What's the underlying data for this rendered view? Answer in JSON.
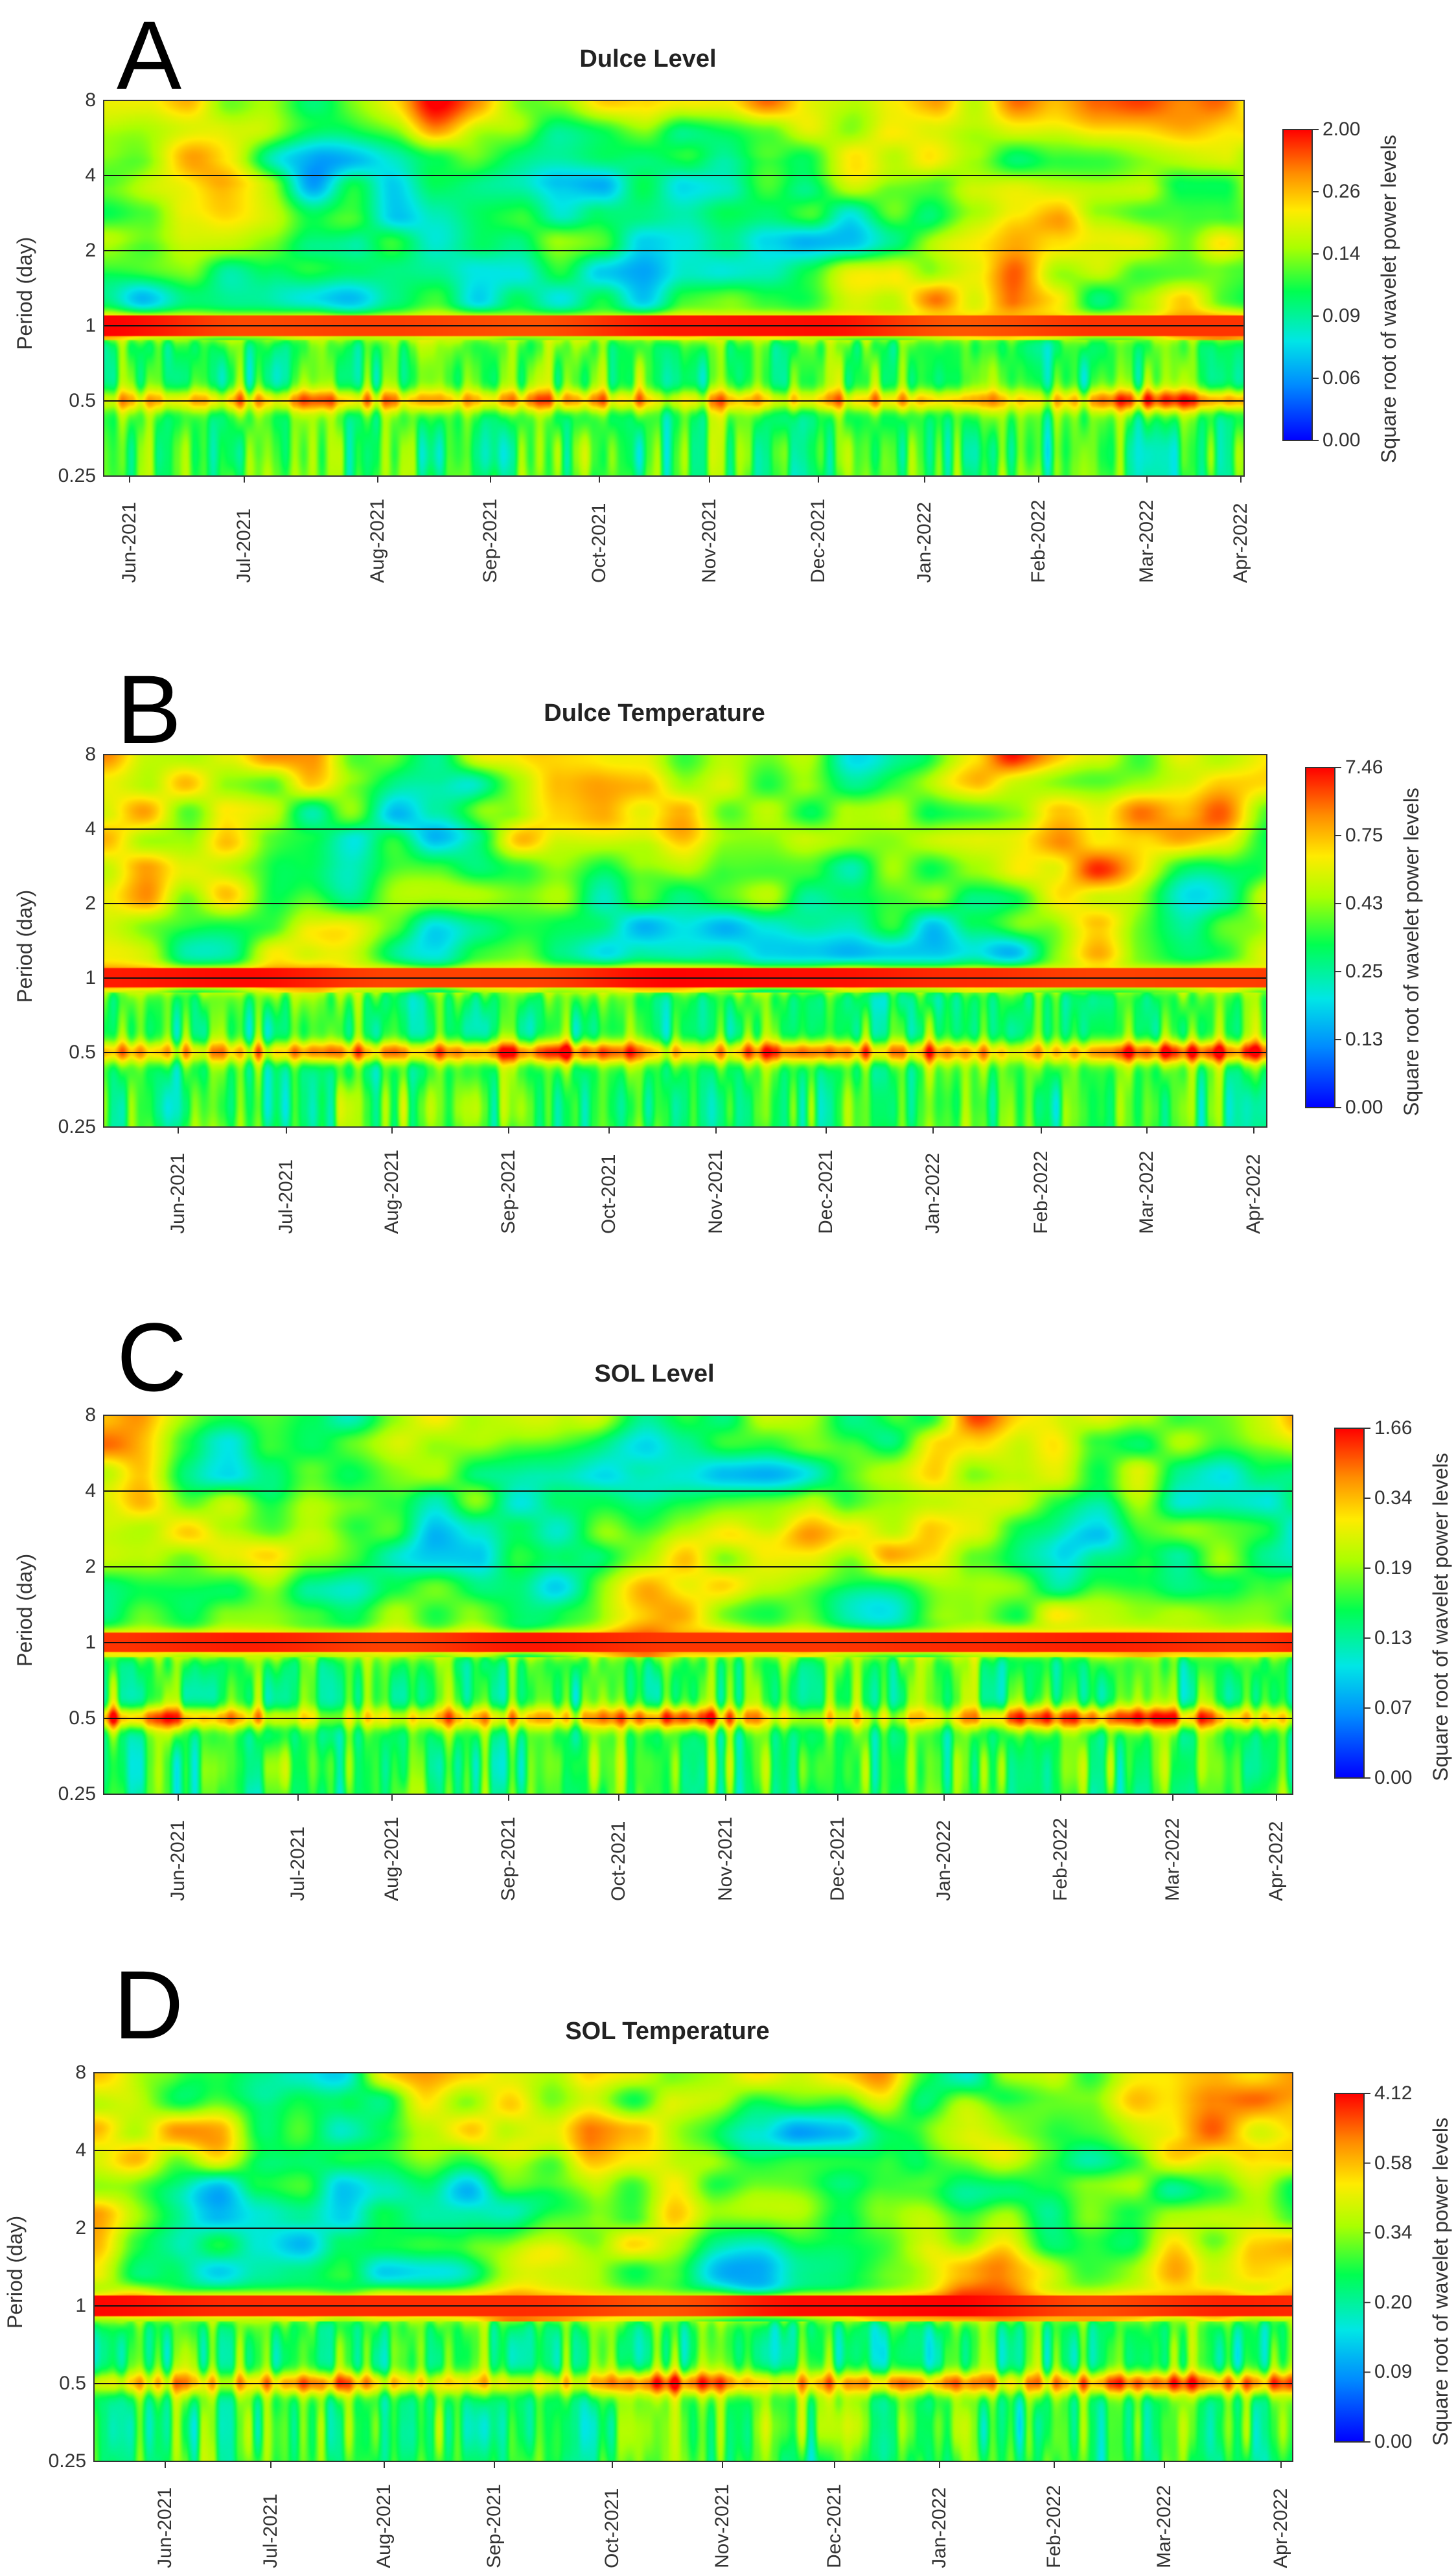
{
  "chart_data": [
    {
      "panel": "A",
      "type": "heatmap",
      "title": "Dulce Level",
      "ylabel": "Period (day)",
      "colorbar_label": "Square root of wavelet power levels",
      "y_scale": "log2",
      "y_ticks": [
        "8",
        "4",
        "2",
        "1",
        "0.5",
        "0.25"
      ],
      "x_ticks": [
        "Jun-2021",
        "Jul-2021",
        "Aug-2021",
        "Sep-2021",
        "Oct-2021",
        "Nov-2021",
        "Dec-2021",
        "Jan-2022",
        "Feb-2022",
        "Mar-2022",
        "Apr-2022"
      ],
      "colorbar_ticks": [
        "2.00",
        "0.26",
        "0.14",
        "0.09",
        "0.06",
        "0.00"
      ],
      "dominant_period_days": 1,
      "colors": [
        "#0000ff",
        "#00bfff",
        "#00ff66",
        "#ffff00",
        "#ff8800",
        "#ff0000"
      ]
    },
    {
      "panel": "B",
      "type": "heatmap",
      "title": "Dulce Temperature",
      "ylabel": "Period (day)",
      "colorbar_label": "Square root of wavelet power levels",
      "y_scale": "log2",
      "y_ticks": [
        "8",
        "4",
        "2",
        "1",
        "0.5",
        "0.25"
      ],
      "x_ticks": [
        "Jun-2021",
        "Jul-2021",
        "Aug-2021",
        "Sep-2021",
        "Oct-2021",
        "Nov-2021",
        "Dec-2021",
        "Jan-2022",
        "Feb-2022",
        "Mar-2022",
        "Apr-2022"
      ],
      "colorbar_ticks": [
        "7.46",
        "0.75",
        "0.43",
        "0.25",
        "0.13",
        "0.00"
      ],
      "dominant_period_days": 1,
      "colors": [
        "#0000ff",
        "#00bfff",
        "#00ff66",
        "#ffff00",
        "#ff8800",
        "#ff0000"
      ]
    },
    {
      "panel": "C",
      "type": "heatmap",
      "title": "SOL Level",
      "ylabel": "Period (day)",
      "colorbar_label": "Square root of wavelet power levels",
      "y_scale": "log2",
      "y_ticks": [
        "8",
        "4",
        "2",
        "1",
        "0.5",
        "0.25"
      ],
      "x_ticks": [
        "Jun-2021",
        "Jul-2021",
        "Aug-2021",
        "Sep-2021",
        "Oct-2021",
        "Nov-2021",
        "Dec-2021",
        "Jan-2022",
        "Feb-2022",
        "Mar-2022",
        "Apr-2022"
      ],
      "colorbar_ticks": [
        "1.66",
        "0.34",
        "0.19",
        "0.13",
        "0.07",
        "0.00"
      ],
      "dominant_period_days": 1,
      "colors": [
        "#0000ff",
        "#00bfff",
        "#00ff66",
        "#ffff00",
        "#ff8800",
        "#ff0000"
      ]
    },
    {
      "panel": "D",
      "type": "heatmap",
      "title": "SOL Temperature",
      "ylabel": "Period (day)",
      "colorbar_label": "Square root of wavelet power levels",
      "y_scale": "log2",
      "y_ticks": [
        "8",
        "4",
        "2",
        "1",
        "0.5",
        "0.25"
      ],
      "x_ticks": [
        "Jun-2021",
        "Jul-2021",
        "Aug-2021",
        "Sep-2021",
        "Oct-2021",
        "Nov-2021",
        "Dec-2021",
        "Jan-2022",
        "Feb-2022",
        "Mar-2022",
        "Apr-2022"
      ],
      "colorbar_ticks": [
        "4.12",
        "0.58",
        "0.34",
        "0.20",
        "0.09",
        "0.00"
      ],
      "dominant_period_days": 1,
      "colors": [
        "#0000ff",
        "#00bfff",
        "#00ff66",
        "#ffff00",
        "#ff8800",
        "#ff0000"
      ]
    }
  ]
}
